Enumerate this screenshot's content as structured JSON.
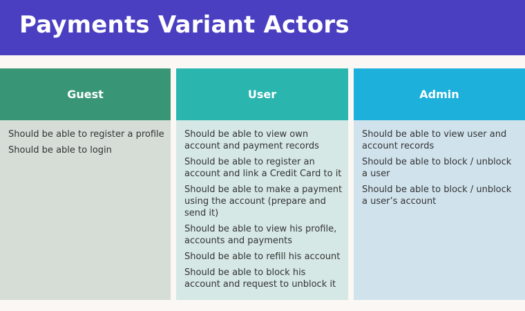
{
  "title": "Payments Variant Actors",
  "columns": [
    {
      "header": "Guest",
      "items": [
        "Should be able to register a profile",
        "Should be able to login"
      ]
    },
    {
      "header": "User",
      "items": [
        "Should be able to view own account and payment records",
        "Should be able to register an account and link a Credit Card to it",
        "Should be able to make a payment using the account (prepare and send it)",
        "Should be able to view his profile, accounts and payments",
        "Should be able to refill his account",
        "Should be able to block  his account and request to unblock it"
      ]
    },
    {
      "header": "Admin",
      "items": [
        "Should be able to view user and account records",
        "Should be able to block / unblock a user",
        "Should be able to block / unblock a user’s account"
      ]
    }
  ]
}
